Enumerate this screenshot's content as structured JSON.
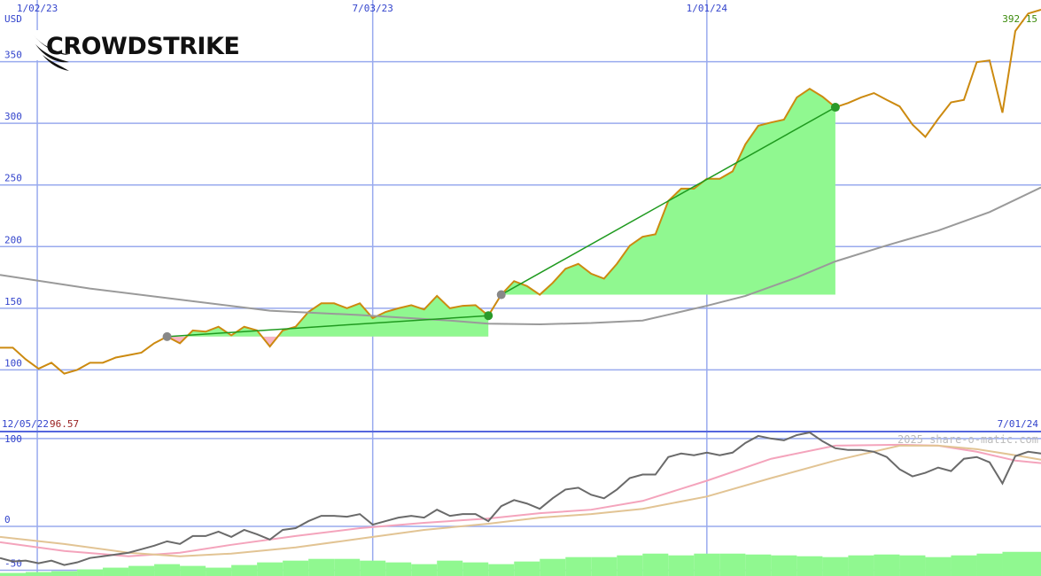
{
  "chart_data": [
    {
      "type": "line",
      "logo": "CROWDSTRIKE",
      "y_label": "USD",
      "last_value_label": "392.15",
      "xlim": [
        0,
        81
      ],
      "ylim": [
        50,
        400
      ],
      "grid": true,
      "xticks": [
        {
          "value": 2.9,
          "label": "1/02/23"
        },
        {
          "value": 29,
          "label": "7/03/23"
        },
        {
          "value": 55,
          "label": "1/01/24"
        }
      ],
      "yticks": [
        100,
        150,
        200,
        250,
        300,
        350
      ],
      "series": [
        {
          "color": "#cc8a10",
          "values": [
            118,
            118,
            108.6,
            101,
            105.8,
            97,
            100,
            105.8,
            105.8,
            110,
            112,
            114,
            121.6,
            127,
            121.6,
            132,
            131,
            135,
            128,
            135,
            132,
            119,
            132,
            135,
            147,
            154,
            154,
            150,
            154,
            142,
            147,
            150,
            152.5,
            149,
            160,
            150,
            152,
            152.5,
            144,
            161,
            172,
            168,
            161,
            170.5,
            182,
            186,
            178,
            174,
            186,
            200.7,
            208,
            210,
            237,
            247,
            247,
            255,
            255,
            261,
            283,
            298,
            300.7,
            303,
            321,
            328,
            321.6,
            313,
            316.5,
            321,
            324.5,
            319,
            313.7,
            299,
            289,
            303.6,
            317,
            319,
            349.6,
            351,
            308.6,
            374.8,
            389,
            392.15
          ]
        },
        {
          "color": "#9a9a9a",
          "x": [
            0,
            7,
            14,
            21,
            28,
            35,
            38,
            42,
            46,
            50,
            55,
            58,
            62,
            65,
            69,
            73,
            77,
            81
          ],
          "values": [
            177,
            166,
            157,
            148,
            144.5,
            140,
            137.5,
            137,
            138,
            140,
            152,
            160,
            175,
            188,
            201,
            213,
            228,
            248
          ]
        }
      ],
      "trades": [
        {
          "entry_x": 13,
          "entry": 127,
          "exit_x": 38,
          "exit": 144
        },
        {
          "entry_x": 39,
          "entry": 161,
          "exit_x": 65,
          "exit": 313
        }
      ],
      "fill_colors": {
        "gain": "#90f890",
        "loss": "#f8b4c4"
      },
      "trade_color": "#1f9a1f",
      "entry_color": "#888888",
      "exit_color": "#2a9a2a"
    },
    {
      "type": "line",
      "start_label": "12/05/22",
      "end_label": "7/01/24",
      "current_label": "96.57",
      "watermark": "2025 share-o-matic.com",
      "xlim": [
        0,
        81
      ],
      "ylim": [
        -56.5,
        108
      ],
      "grid": true,
      "yticks": [
        100,
        0,
        -50
      ],
      "series": [
        {
          "style": "bar",
          "color": "#90f890",
          "x": [
            0,
            2,
            4,
            6,
            8,
            10,
            12,
            14,
            16,
            18,
            20,
            22,
            24,
            26,
            28,
            30,
            32,
            34,
            36,
            38,
            40,
            42,
            44,
            46,
            48,
            50,
            52,
            54,
            56,
            58,
            60,
            62,
            64,
            66,
            68,
            70,
            72,
            74,
            76,
            78,
            80
          ],
          "values": [
            -53,
            -52,
            -51,
            -49,
            -47,
            -45,
            -43,
            -45,
            -47,
            -44,
            -41,
            -39,
            -37,
            -37,
            -39,
            -41,
            -43,
            -39,
            -41,
            -43,
            -40,
            -37,
            -35,
            -35,
            -33,
            -31,
            -33,
            -31,
            -31,
            -32,
            -33,
            -34,
            -35,
            -33,
            -32,
            -33,
            -35,
            -33,
            -31,
            -29,
            -29
          ]
        },
        {
          "color": "#f4a4bc",
          "x": [
            0,
            5,
            10,
            14,
            18,
            23,
            28,
            33,
            38,
            42,
            46,
            50,
            55,
            60,
            65,
            70,
            73,
            76,
            79,
            81
          ],
          "values": [
            -18,
            -28,
            -34,
            -30,
            -21,
            -11,
            -2,
            4,
            9,
            15,
            19,
            29,
            52,
            77,
            92,
            93,
            92,
            85,
            75,
            72
          ]
        },
        {
          "color": "#e2c494",
          "x": [
            0,
            5,
            10,
            14,
            18,
            23,
            28,
            33,
            38,
            42,
            46,
            50,
            55,
            60,
            65,
            70,
            73,
            76,
            79,
            81
          ],
          "values": [
            -12,
            -20,
            -30,
            -34,
            -31,
            -24,
            -14,
            -4,
            3,
            10,
            14,
            20,
            34,
            55,
            75,
            92,
            92,
            88,
            81,
            76
          ]
        },
        {
          "color": "#6a6a6a",
          "values": [
            -36,
            -40,
            -39,
            -42,
            -39,
            -44,
            -41,
            -36,
            -34,
            -32,
            -30,
            -26,
            -22,
            -17,
            -20,
            -11,
            -11,
            -6,
            -12,
            -4,
            -9,
            -15,
            -4,
            -2,
            6,
            12,
            12,
            11,
            14,
            2,
            6,
            10,
            12,
            10,
            19,
            12,
            14,
            14,
            6,
            23,
            30,
            26,
            20,
            32,
            42,
            44,
            36,
            32,
            42,
            55,
            59,
            59,
            79,
            83,
            81,
            84,
            81,
            84,
            95,
            103,
            100,
            98,
            104,
            107,
            97,
            89,
            87,
            87,
            85,
            79,
            65,
            57,
            61,
            67,
            63,
            77,
            79,
            73,
            49,
            80,
            85,
            83
          ]
        }
      ]
    }
  ]
}
